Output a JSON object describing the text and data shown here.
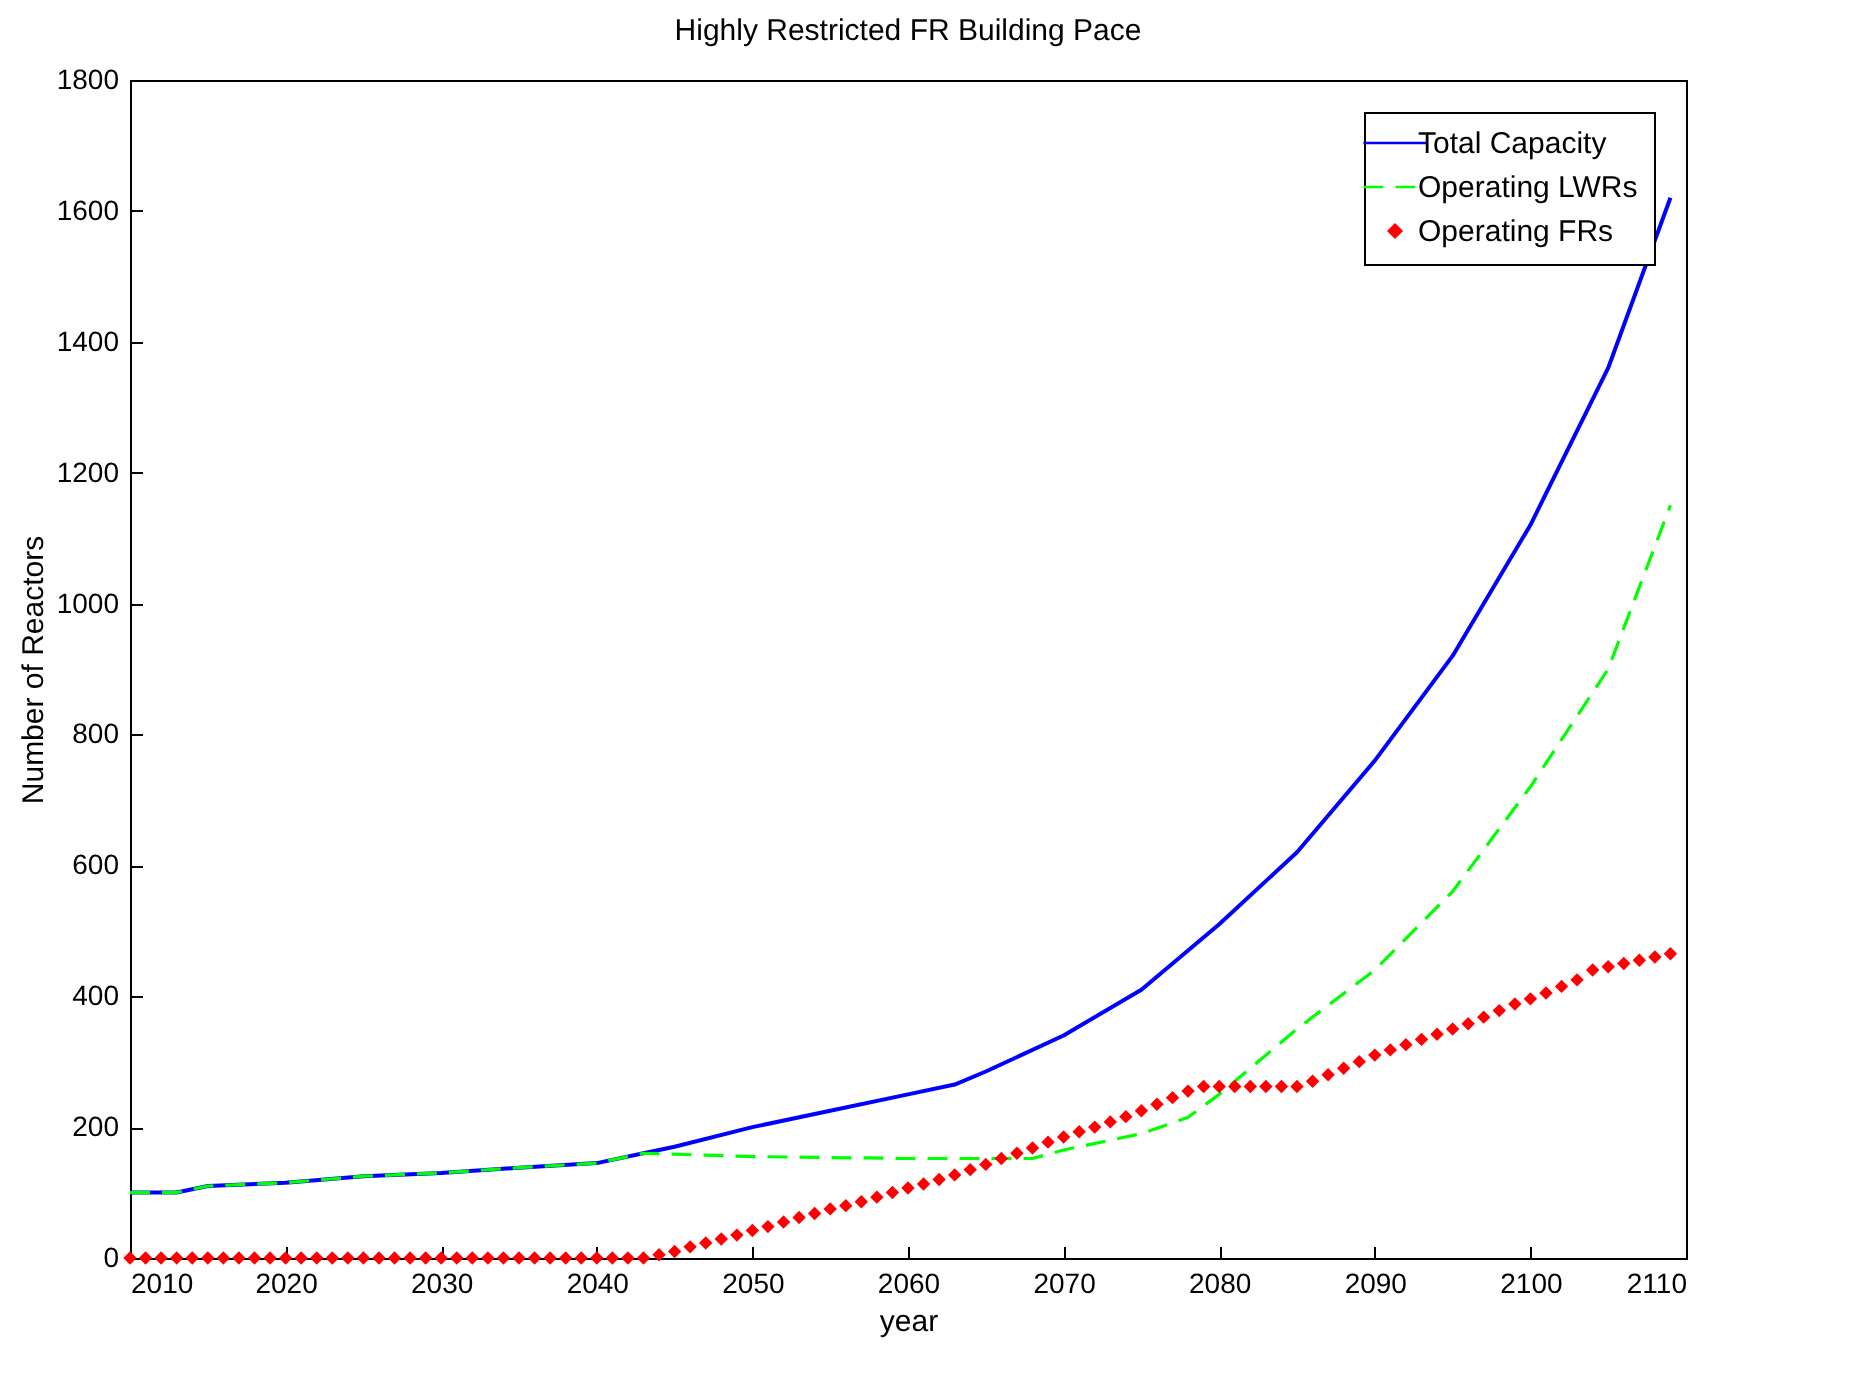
{
  "chart_data": {
    "type": "line",
    "title": "Highly Restricted FR Building Pace",
    "xlabel": "year",
    "ylabel": "Number of Reactors",
    "xlim": [
      2010,
      2110
    ],
    "xticks": [
      2010,
      2020,
      2030,
      2040,
      2050,
      2060,
      2070,
      2080,
      2090,
      2100,
      2110
    ],
    "ylim": [
      0,
      1800
    ],
    "yticks": [
      0,
      200,
      400,
      600,
      800,
      1000,
      1200,
      1400,
      1600,
      1800
    ],
    "grid": false,
    "legend": "top right",
    "series": [
      {
        "name": "Total Capacity",
        "color": "#0000ff",
        "line_style": "solid",
        "marker": "none",
        "x": [
          2010,
          2013,
          2015,
          2020,
          2025,
          2030,
          2035,
          2040,
          2043,
          2045,
          2050,
          2055,
          2060,
          2063,
          2065,
          2070,
          2075,
          2080,
          2085,
          2090,
          2095,
          2100,
          2105,
          2109
        ],
        "values": [
          100,
          100,
          110,
          115,
          125,
          130,
          138,
          145,
          160,
          170,
          200,
          225,
          250,
          265,
          285,
          340,
          410,
          510,
          620,
          760,
          920,
          1120,
          1360,
          1620
        ]
      },
      {
        "name": "Operating LWRs",
        "color": "#00ff00",
        "line_style": "dashed",
        "marker": "none",
        "x": [
          2010,
          2013,
          2015,
          2020,
          2025,
          2030,
          2035,
          2040,
          2043,
          2050,
          2060,
          2068,
          2070,
          2075,
          2078,
          2080,
          2085,
          2090,
          2095,
          2100,
          2105,
          2109
        ],
        "values": [
          100,
          100,
          110,
          115,
          125,
          130,
          138,
          145,
          160,
          155,
          152,
          152,
          165,
          190,
          215,
          250,
          350,
          440,
          560,
          720,
          900,
          1150
        ]
      },
      {
        "name": "Operating FRs",
        "color": "#ff0000",
        "type": "scatter",
        "marker": "diamond",
        "x": [
          2010,
          2011,
          2012,
          2013,
          2014,
          2015,
          2016,
          2017,
          2018,
          2019,
          2020,
          2021,
          2022,
          2023,
          2024,
          2025,
          2026,
          2027,
          2028,
          2029,
          2030,
          2031,
          2032,
          2033,
          2034,
          2035,
          2036,
          2037,
          2038,
          2039,
          2040,
          2041,
          2042,
          2043,
          2044,
          2045,
          2046,
          2047,
          2048,
          2049,
          2050,
          2051,
          2052,
          2053,
          2054,
          2055,
          2056,
          2057,
          2058,
          2059,
          2060,
          2061,
          2062,
          2063,
          2064,
          2065,
          2066,
          2067,
          2068,
          2069,
          2070,
          2071,
          2072,
          2073,
          2074,
          2075,
          2076,
          2077,
          2078,
          2079,
          2080,
          2081,
          2082,
          2083,
          2084,
          2085,
          2086,
          2087,
          2088,
          2089,
          2090,
          2091,
          2092,
          2093,
          2094,
          2095,
          2096,
          2097,
          2098,
          2099,
          2100,
          2101,
          2102,
          2103,
          2104,
          2105,
          2106,
          2107,
          2108,
          2109
        ],
        "values": [
          0,
          0,
          0,
          0,
          0,
          0,
          0,
          0,
          0,
          0,
          0,
          0,
          0,
          0,
          0,
          0,
          0,
          0,
          0,
          0,
          0,
          0,
          0,
          0,
          0,
          0,
          0,
          0,
          0,
          0,
          0,
          0,
          0,
          0,
          5,
          10,
          17,
          23,
          29,
          35,
          42,
          48,
          55,
          62,
          68,
          75,
          80,
          86,
          93,
          100,
          107,
          113,
          120,
          127,
          135,
          143,
          152,
          160,
          168,
          177,
          185,
          193,
          200,
          208,
          216,
          225,
          235,
          245,
          255,
          262,
          262,
          262,
          262,
          262,
          262,
          262,
          270,
          280,
          290,
          300,
          310,
          318,
          326,
          334,
          342,
          350,
          358,
          368,
          378,
          388,
          396,
          405,
          415,
          425,
          440,
          445,
          450,
          455,
          460,
          465
        ]
      }
    ]
  }
}
